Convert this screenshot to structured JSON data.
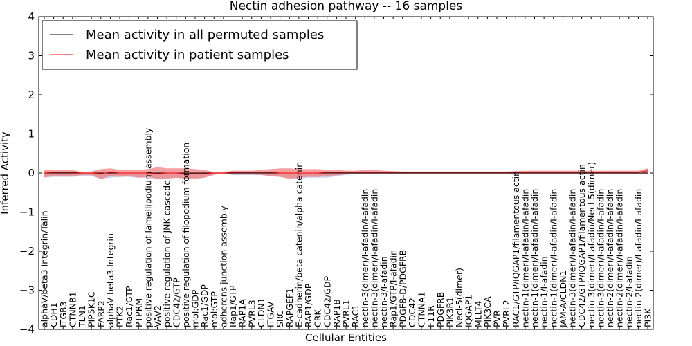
{
  "chart_data": {
    "type": "line",
    "title": "Nectin adhesion pathway -- 16 samples",
    "xlabel": "Cellular Entities",
    "ylabel": "Inferred Activity",
    "ylim": [
      -4,
      4
    ],
    "yticks": [
      -4,
      -3,
      -2,
      -1,
      0,
      1,
      2,
      3,
      4
    ],
    "ytick_labels": [
      "−4",
      "−3",
      "−2",
      "−1",
      "0",
      "1",
      "2",
      "3",
      "4"
    ],
    "grid": false,
    "legend_position": "top-left",
    "categories": [
      "alphaV/beta3 Integrin/Talin",
      "CDH1",
      "ITGB3",
      "CTNNB1",
      "TLN1",
      "PIP5K1C",
      "FARP2",
      "alphaV beta3 Integrin",
      "PTK2",
      "Rac1/GTP",
      "PTPRM",
      "positive regulation of lamellipodium assembly",
      "VAV2",
      "positive regulation of JNK cascade",
      "CDC42/GTP",
      "positive regulation of filopodium formation",
      "mol:GDP",
      "Rac1/GDP",
      "mol:GTP",
      "adherens junction assembly",
      "Rap1/GTP",
      "RAP1A",
      "PVRL3",
      "CLDN1",
      "ITGAV",
      "SRC",
      "RAPGEF1",
      "E-cadherin/beta catenin/alpha catenin",
      "RAP1/GDP",
      "CRK",
      "CDC42/GDP",
      "RAP1B",
      "PVRL1",
      "RAC1",
      "nectin-3(dimer)/I-afadin/I-afadin",
      "nectin-3(dimer)/I-afadin/I-afadin",
      "nectin-3/I-afadin",
      "Rap1/GTP/I-afadin",
      "PDGFB-D/PDGFRB",
      "CDC42",
      "CTNNA1",
      "F11R",
      "PDGFRB",
      "PIK3R1",
      "Necl-5(dimer)",
      "IQGAP1",
      "MLLT4",
      "PIK3CA",
      "PVR",
      "PVRL2",
      "RAC1/GTP/IQGAP1/filamentous actin",
      "nectin-1(dimer)/I-afadin/I-afadin",
      "nectin-1(dimer)/I-afadin/I-afadin",
      "nectin-1/I-afadin",
      "nectin-1(dimer)/I-afadin/I-afadin",
      "JAM-A/CLDN1",
      "nectin-3(dimer)/I-afadin/I-afadin",
      "CDC42/GTP/IQGAP1/filamentous actin",
      "nectin-3(dimer)/I-afadin/Necl-5(dimer)",
      "nectin-3(dimer)/I-afadin/I-afadin",
      "nectin-2(dimer)/I-afadin/I-afadin",
      "nectin-2(dimer)/I-afadin/I-afadin",
      "nectin-2/I-afadin",
      "nectin-2(dimer)/I-afadin/I-afadin",
      "PI3K"
    ],
    "series": [
      {
        "name": "Mean activity in all permuted samples",
        "color": "#000000",
        "values": [
          0.0,
          0.0,
          0.0,
          0.0,
          0.0,
          0.0,
          0.0,
          0.0,
          0.0,
          0.0,
          0.0,
          0.0,
          0.0,
          0.0,
          0.0,
          0.0,
          0.0,
          0.0,
          0.0,
          0.0,
          0.0,
          0.0,
          0.0,
          0.0,
          0.0,
          0.0,
          0.0,
          0.0,
          0.0,
          0.0,
          0.0,
          0.0,
          0.0,
          0.0,
          0.0,
          0.0,
          0.0,
          0.0,
          0.0,
          0.0,
          0.0,
          0.0,
          0.0,
          0.0,
          0.0,
          0.0,
          0.0,
          0.0,
          0.0,
          0.0,
          0.0,
          0.0,
          0.0,
          0.0,
          0.0,
          0.0,
          0.0,
          0.0,
          0.0,
          0.0,
          0.0,
          0.0,
          0.0,
          0.0,
          0.0
        ],
        "band_upper": [
          0.0,
          0.0,
          0.0,
          0.0,
          0.0,
          0.0,
          0.0,
          0.0,
          0.0,
          0.0,
          0.0,
          0.0,
          0.0,
          0.0,
          0.0,
          0.0,
          0.0,
          0.0,
          0.0,
          0.0,
          0.0,
          0.0,
          0.0,
          0.0,
          0.0,
          0.0,
          0.0,
          0.0,
          0.0,
          0.0,
          0.0,
          0.0,
          0.0,
          0.0,
          0.0,
          0.0,
          0.0,
          0.0,
          0.0,
          0.0,
          0.0,
          0.0,
          0.0,
          0.0,
          0.0,
          0.0,
          0.0,
          0.0,
          0.0,
          0.0,
          0.0,
          0.0,
          0.0,
          0.0,
          0.0,
          0.0,
          0.0,
          0.0,
          0.0,
          0.0,
          0.0,
          0.0,
          0.0,
          0.0,
          0.0
        ],
        "band_lower": [
          -0.1,
          -0.1,
          -0.1,
          -0.1,
          -0.08,
          -0.08,
          -0.15,
          -0.12,
          -0.1,
          -0.1,
          -0.12,
          -0.12,
          -0.15,
          -0.12,
          -0.12,
          -0.12,
          -0.12,
          -0.12,
          -0.05,
          -0.02,
          -0.05,
          -0.05,
          -0.05,
          -0.05,
          -0.08,
          -0.1,
          -0.12,
          -0.15,
          -0.12,
          -0.12,
          -0.12,
          -0.08,
          -0.05,
          -0.03,
          -0.02,
          -0.02,
          -0.02,
          -0.02,
          -0.02,
          -0.02,
          -0.02,
          -0.02,
          -0.02,
          -0.02,
          -0.02,
          -0.02,
          -0.02,
          -0.02,
          -0.02,
          -0.02,
          -0.02,
          -0.02,
          -0.02,
          -0.02,
          -0.02,
          -0.02,
          -0.02,
          -0.02,
          -0.02,
          -0.02,
          -0.02,
          -0.02,
          -0.02,
          -0.02,
          -0.02
        ]
      },
      {
        "name": "Mean activity in patient samples",
        "color": "#ff0000",
        "values": [
          0.0,
          0.02,
          0.02,
          0.02,
          0.0,
          0.0,
          -0.02,
          0.02,
          0.0,
          0.0,
          0.0,
          0.0,
          -0.02,
          0.0,
          0.0,
          -0.02,
          -0.02,
          -0.02,
          0.0,
          0.0,
          0.02,
          0.02,
          0.02,
          0.02,
          0.02,
          0.0,
          0.0,
          0.0,
          0.0,
          0.0,
          0.02,
          0.02,
          0.02,
          0.02,
          0.02,
          0.02,
          0.02,
          0.02,
          0.02,
          0.02,
          0.02,
          0.02,
          0.02,
          0.02,
          0.02,
          0.02,
          0.02,
          0.02,
          0.02,
          0.02,
          0.02,
          0.02,
          0.02,
          0.02,
          0.02,
          0.02,
          0.02,
          0.02,
          0.02,
          0.02,
          0.02,
          0.02,
          0.02,
          0.02,
          0.06
        ],
        "band_upper": [
          0.08,
          0.08,
          0.08,
          0.08,
          0.02,
          0.04,
          0.1,
          0.12,
          0.08,
          0.08,
          0.08,
          0.1,
          0.15,
          0.12,
          0.12,
          0.12,
          0.1,
          0.08,
          0.02,
          0.02,
          0.06,
          0.06,
          0.06,
          0.08,
          0.1,
          0.12,
          0.12,
          0.1,
          0.1,
          0.1,
          0.08,
          0.08,
          0.06,
          0.06,
          0.08,
          0.08,
          0.06,
          0.05,
          0.04,
          0.04,
          0.04,
          0.04,
          0.04,
          0.04,
          0.04,
          0.04,
          0.04,
          0.04,
          0.04,
          0.04,
          0.05,
          0.06,
          0.06,
          0.06,
          0.06,
          0.06,
          0.06,
          0.06,
          0.06,
          0.06,
          0.06,
          0.06,
          0.06,
          0.06,
          0.12
        ],
        "band_lower": [
          -0.12,
          -0.08,
          -0.08,
          -0.08,
          -0.05,
          -0.05,
          -0.15,
          -0.08,
          -0.1,
          -0.08,
          -0.12,
          -0.1,
          -0.15,
          -0.15,
          -0.12,
          -0.15,
          -0.15,
          -0.12,
          -0.04,
          -0.02,
          -0.04,
          -0.04,
          -0.04,
          -0.05,
          -0.08,
          -0.1,
          -0.15,
          -0.12,
          -0.1,
          -0.1,
          -0.08,
          -0.06,
          -0.03,
          -0.02,
          -0.02,
          -0.02,
          -0.02,
          -0.02,
          -0.02,
          -0.02,
          -0.02,
          -0.02,
          -0.02,
          -0.02,
          -0.02,
          -0.02,
          -0.02,
          -0.02,
          -0.02,
          -0.02,
          -0.02,
          -0.02,
          -0.02,
          -0.02,
          -0.02,
          -0.02,
          -0.02,
          -0.02,
          -0.02,
          -0.02,
          -0.02,
          -0.02,
          -0.02,
          -0.02,
          -0.02
        ]
      }
    ],
    "colors": {
      "permuted_band": "#c6cbe8",
      "patient_band": "#f08080"
    }
  }
}
